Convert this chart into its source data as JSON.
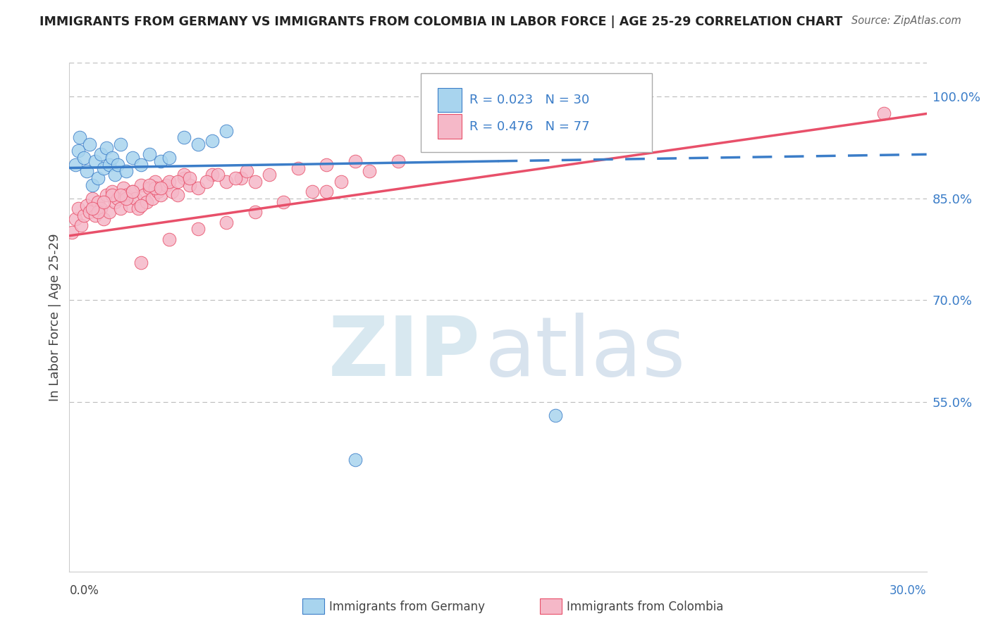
{
  "title": "IMMIGRANTS FROM GERMANY VS IMMIGRANTS FROM COLOMBIA IN LABOR FORCE | AGE 25-29 CORRELATION CHART",
  "source": "Source: ZipAtlas.com",
  "ylabel": "In Labor Force | Age 25-29",
  "x_min": 0.0,
  "x_max": 30.0,
  "y_min": 30.0,
  "y_max": 105.0,
  "yticks": [
    55.0,
    70.0,
    85.0,
    100.0
  ],
  "germany_color": "#A8D4EE",
  "colombia_color": "#F5B8C8",
  "germany_line_color": "#3B7DC8",
  "colombia_line_color": "#E8506A",
  "germany_r": 0.023,
  "germany_n": 30,
  "colombia_r": 0.476,
  "colombia_n": 77,
  "germany_scatter_x": [
    0.2,
    0.3,
    0.35,
    0.5,
    0.6,
    0.7,
    0.8,
    0.9,
    1.0,
    1.1,
    1.2,
    1.3,
    1.4,
    1.5,
    1.6,
    1.7,
    1.8,
    2.0,
    2.2,
    2.5,
    2.8,
    3.2,
    3.5,
    4.0,
    4.5,
    5.0,
    5.5,
    10.0,
    17.0,
    20.0
  ],
  "germany_scatter_y": [
    90.0,
    92.0,
    94.0,
    91.0,
    89.0,
    93.0,
    87.0,
    90.5,
    88.0,
    91.5,
    89.5,
    92.5,
    90.0,
    91.0,
    88.5,
    90.0,
    93.0,
    89.0,
    91.0,
    90.0,
    91.5,
    90.5,
    91.0,
    94.0,
    93.0,
    93.5,
    95.0,
    46.5,
    53.0,
    95.0
  ],
  "colombia_scatter_x": [
    0.1,
    0.2,
    0.3,
    0.4,
    0.5,
    0.6,
    0.7,
    0.8,
    0.9,
    1.0,
    1.1,
    1.2,
    1.3,
    1.4,
    1.5,
    1.6,
    1.7,
    1.8,
    1.9,
    2.0,
    2.1,
    2.2,
    2.3,
    2.4,
    2.5,
    2.6,
    2.7,
    2.8,
    2.9,
    3.0,
    3.1,
    3.2,
    3.4,
    3.6,
    3.8,
    4.0,
    4.2,
    4.5,
    5.0,
    5.5,
    6.0,
    6.5,
    7.0,
    8.0,
    9.0,
    10.0,
    2.5,
    3.0,
    3.5,
    4.0,
    1.0,
    1.5,
    2.0,
    0.8,
    1.2,
    1.8,
    2.2,
    2.8,
    3.2,
    3.8,
    4.2,
    4.8,
    5.2,
    5.8,
    6.2,
    3.5,
    4.5,
    5.5,
    6.5,
    7.5,
    8.5,
    9.5,
    10.5,
    11.5,
    28.5,
    9.0,
    2.5
  ],
  "colombia_scatter_y": [
    80.0,
    82.0,
    83.5,
    81.0,
    82.5,
    84.0,
    83.0,
    85.0,
    82.5,
    84.5,
    83.5,
    82.0,
    85.5,
    83.0,
    86.0,
    84.5,
    85.0,
    83.5,
    86.5,
    85.5,
    84.0,
    86.0,
    85.0,
    83.5,
    87.0,
    85.5,
    84.5,
    86.5,
    85.0,
    87.5,
    86.0,
    85.5,
    87.0,
    86.0,
    85.5,
    88.0,
    87.0,
    86.5,
    88.5,
    87.5,
    88.0,
    87.5,
    88.5,
    89.5,
    90.0,
    90.5,
    84.0,
    86.5,
    87.5,
    88.5,
    83.0,
    85.5,
    85.0,
    83.5,
    84.5,
    85.5,
    86.0,
    87.0,
    86.5,
    87.5,
    88.0,
    87.5,
    88.5,
    88.0,
    89.0,
    79.0,
    80.5,
    81.5,
    83.0,
    84.5,
    86.0,
    87.5,
    89.0,
    90.5,
    97.5,
    86.0,
    75.5
  ],
  "germany_trendline_x": [
    0.0,
    30.0
  ],
  "germany_trendline_y": [
    89.5,
    91.5
  ],
  "colombia_trendline_x": [
    0.0,
    30.0
  ],
  "colombia_trendline_y": [
    79.5,
    97.5
  ]
}
